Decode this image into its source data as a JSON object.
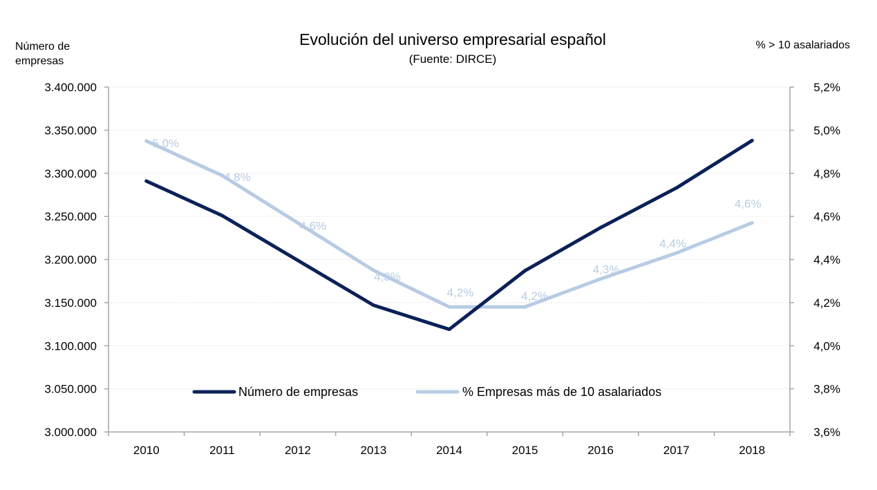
{
  "chart_data": {
    "type": "line",
    "title": "Evolución del universo empresarial español",
    "subtitle": "(Fuente: DIRCE)",
    "ylabel_left": "Número de empresas",
    "ylabel_right": "% > 10 asalariados",
    "categories": [
      "2010",
      "2011",
      "2012",
      "2013",
      "2014",
      "2015",
      "2016",
      "2017",
      "2018"
    ],
    "y_left": {
      "range": [
        3000000,
        3400000
      ],
      "ticks": [
        3000000,
        3050000,
        3100000,
        3150000,
        3200000,
        3250000,
        3300000,
        3350000,
        3400000
      ],
      "tick_labels": [
        "3.000.000",
        "3.050.000",
        "3.100.000",
        "3.150.000",
        "3.200.000",
        "3.250.000",
        "3.300.000",
        "3.350.000",
        "3.400.000"
      ]
    },
    "y_right": {
      "range": [
        3.6,
        5.2
      ],
      "ticks": [
        3.6,
        3.8,
        4.0,
        4.2,
        4.4,
        4.6,
        4.8,
        5.0,
        5.2
      ],
      "tick_labels": [
        "3,6%",
        "3,8%",
        "4,0%",
        "4,2%",
        "4,4%",
        "4,6%",
        "4,8%",
        "5,0%",
        "5,2%"
      ]
    },
    "series": [
      {
        "name": "Número de empresas",
        "axis": "left",
        "color": "#0b2158",
        "values": [
          3291000,
          3251000,
          3199000,
          3147000,
          3119000,
          3187000,
          3237000,
          3283000,
          3338000
        ]
      },
      {
        "name": "% Empresas más de 10 asalariados",
        "axis": "right",
        "color": "#b7cce3",
        "values": [
          4.95,
          4.79,
          4.57,
          4.35,
          4.18,
          4.18,
          4.31,
          4.43,
          4.57
        ],
        "data_labels": [
          "5,0%",
          "4,8%",
          "4,6%",
          "4,3%",
          "4,2%",
          "4,2%",
          "4,3%",
          "4,4%",
          "4,6%"
        ]
      }
    ],
    "grid": true,
    "legend": "bottom"
  }
}
